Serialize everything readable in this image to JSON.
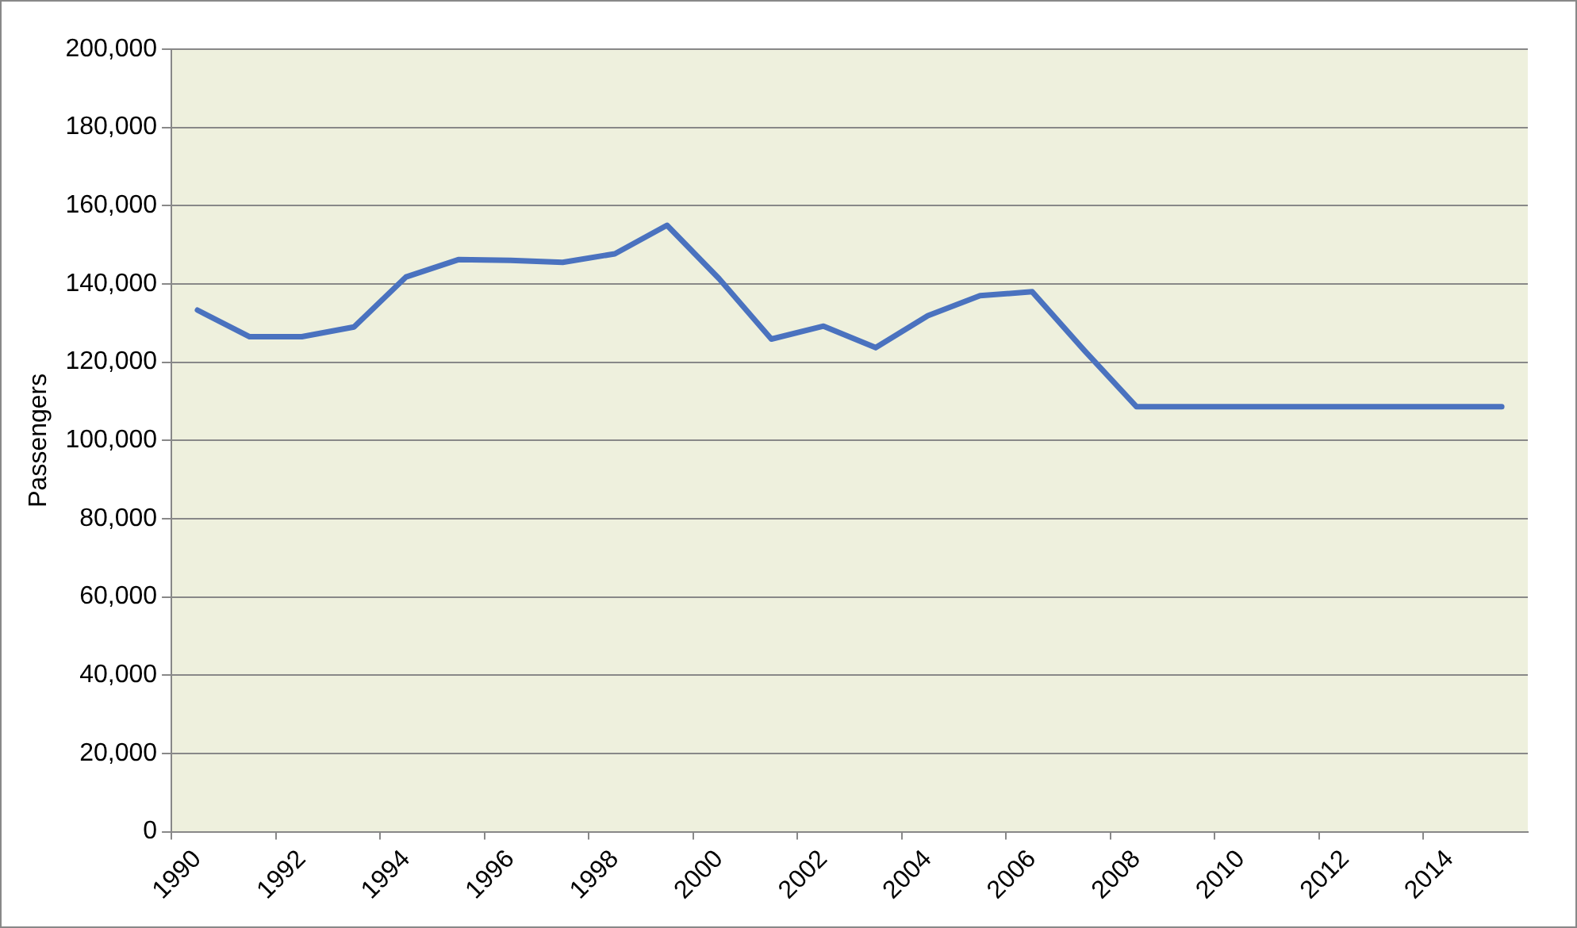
{
  "chart_data": {
    "type": "line",
    "ylabel": "Passengers",
    "categories": [
      "1990",
      null,
      "1992",
      null,
      "1994",
      null,
      "1996",
      null,
      "1998",
      null,
      "2000",
      null,
      "2002",
      null,
      "2004",
      null,
      "2006",
      null,
      "2008",
      null,
      "2010",
      null,
      "2012",
      null,
      "2014",
      null
    ],
    "series": [
      {
        "color": "#4a72bf",
        "values": [
          133300,
          126500,
          126500,
          129000,
          141800,
          146200,
          146000,
          145500,
          147700,
          155000,
          141300,
          125900,
          129200,
          123700,
          131900,
          137000,
          138000,
          123000,
          108600,
          108600,
          108600,
          108600,
          108600,
          108600,
          108600,
          108600
        ]
      }
    ],
    "ylim": [
      0,
      200000
    ],
    "yticks": [
      {
        "value": 0,
        "label": "0"
      },
      {
        "value": 20000,
        "label": "20,000"
      },
      {
        "value": 40000,
        "label": "40,000"
      },
      {
        "value": 60000,
        "label": "60,000"
      },
      {
        "value": 80000,
        "label": "80,000"
      },
      {
        "value": 100000,
        "label": "100,000"
      },
      {
        "value": 120000,
        "label": "120,000"
      },
      {
        "value": 140000,
        "label": "140,000"
      },
      {
        "value": 160000,
        "label": "160,000"
      },
      {
        "value": 180000,
        "label": "180,000"
      },
      {
        "value": 200000,
        "label": "200,000"
      }
    ],
    "grid": "y",
    "legend": false,
    "marker": "none",
    "line_style": "solid"
  }
}
